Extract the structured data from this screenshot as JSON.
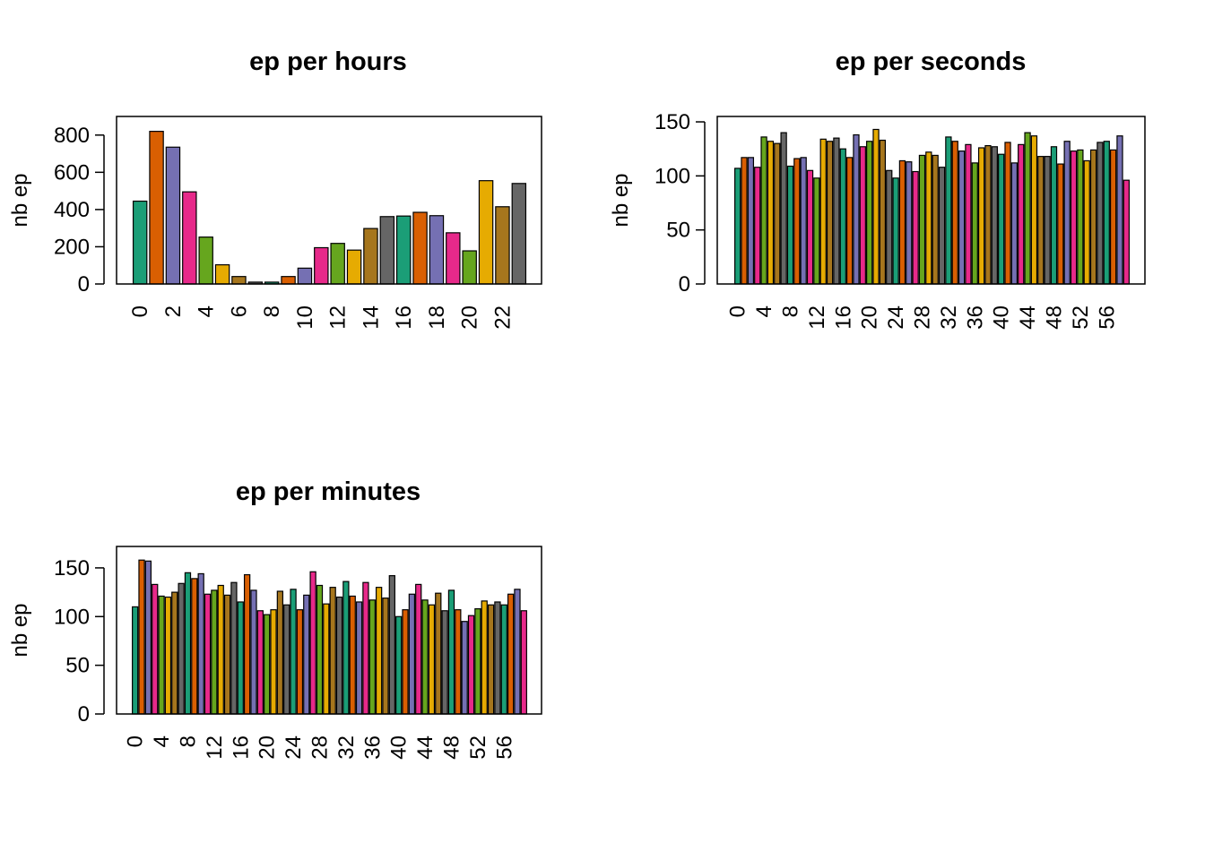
{
  "palette": [
    "#1B9E77",
    "#D95F02",
    "#7570B3",
    "#E7298A",
    "#66A61E",
    "#E6AB02",
    "#A6761D",
    "#666666"
  ],
  "chart_data": [
    {
      "type": "bar",
      "title": "ep per hours",
      "xlabel": "",
      "ylabel": "nb ep",
      "ylim": [
        0,
        900
      ],
      "yticks": [
        0,
        200,
        400,
        600,
        800
      ],
      "categories": [
        "0",
        "1",
        "2",
        "3",
        "4",
        "5",
        "6",
        "7",
        "8",
        "9",
        "10",
        "11",
        "12",
        "13",
        "14",
        "15",
        "16",
        "17",
        "18",
        "19",
        "20",
        "21",
        "22",
        "23"
      ],
      "shown_xtick_labels": [
        "0",
        "2",
        "4",
        "6",
        "8",
        "10",
        "12",
        "14",
        "16",
        "18",
        "20",
        "22"
      ],
      "values": [
        445,
        820,
        735,
        495,
        252,
        103,
        40,
        10,
        10,
        40,
        85,
        195,
        218,
        182,
        298,
        362,
        365,
        385,
        367,
        275,
        178,
        555,
        415,
        540
      ]
    },
    {
      "type": "bar",
      "title": "ep per seconds",
      "xlabel": "",
      "ylabel": "nb ep",
      "ylim": [
        0,
        155
      ],
      "yticks": [
        0,
        50,
        100,
        150
      ],
      "categories": [
        "0",
        "1",
        "2",
        "3",
        "4",
        "5",
        "6",
        "7",
        "8",
        "9",
        "10",
        "11",
        "12",
        "13",
        "14",
        "15",
        "16",
        "17",
        "18",
        "19",
        "20",
        "21",
        "22",
        "23",
        "24",
        "25",
        "26",
        "27",
        "28",
        "29",
        "30",
        "31",
        "32",
        "33",
        "34",
        "35",
        "36",
        "37",
        "38",
        "39",
        "40",
        "41",
        "42",
        "43",
        "44",
        "45",
        "46",
        "47",
        "48",
        "49",
        "50",
        "51",
        "52",
        "53",
        "54",
        "55",
        "56",
        "57",
        "58",
        "59"
      ],
      "shown_xtick_labels": [
        "0",
        "4",
        "8",
        "12",
        "16",
        "20",
        "24",
        "28",
        "32",
        "36",
        "40",
        "44",
        "48",
        "52",
        "56"
      ],
      "values": [
        107,
        117,
        117,
        108,
        136,
        132,
        130,
        140,
        109,
        116,
        117,
        105,
        98,
        134,
        132,
        135,
        125,
        117,
        138,
        127,
        132,
        143,
        133,
        105,
        98,
        114,
        113,
        104,
        119,
        122,
        119,
        108,
        136,
        132,
        123,
        129,
        112,
        126,
        128,
        127,
        120,
        131,
        112,
        129,
        140,
        137,
        118,
        118,
        127,
        111,
        132,
        123,
        124,
        114,
        124,
        131,
        132,
        124,
        137,
        96
      ]
    },
    {
      "type": "bar",
      "title": "ep per minutes",
      "xlabel": "",
      "ylabel": "nb ep",
      "ylim": [
        0,
        172
      ],
      "yticks": [
        0,
        50,
        100,
        150
      ],
      "categories": [
        "0",
        "1",
        "2",
        "3",
        "4",
        "5",
        "6",
        "7",
        "8",
        "9",
        "10",
        "11",
        "12",
        "13",
        "14",
        "15",
        "16",
        "17",
        "18",
        "19",
        "20",
        "21",
        "22",
        "23",
        "24",
        "25",
        "26",
        "27",
        "28",
        "29",
        "30",
        "31",
        "32",
        "33",
        "34",
        "35",
        "36",
        "37",
        "38",
        "39",
        "40",
        "41",
        "42",
        "43",
        "44",
        "45",
        "46",
        "47",
        "48",
        "49",
        "50",
        "51",
        "52",
        "53",
        "54",
        "55",
        "56",
        "57",
        "58",
        "59"
      ],
      "shown_xtick_labels": [
        "0",
        "4",
        "8",
        "12",
        "16",
        "20",
        "24",
        "28",
        "32",
        "36",
        "40",
        "44",
        "48",
        "52",
        "56"
      ],
      "values": [
        110,
        158,
        157,
        133,
        121,
        120,
        125,
        134,
        145,
        139,
        144,
        123,
        127,
        132,
        122,
        135,
        115,
        143,
        127,
        106,
        102,
        107,
        126,
        112,
        128,
        107,
        122,
        146,
        132,
        113,
        130,
        120,
        136,
        121,
        115,
        135,
        117,
        130,
        119,
        142,
        100,
        107,
        123,
        133,
        117,
        112,
        124,
        106,
        127,
        107,
        95,
        101,
        108,
        116,
        112,
        115,
        112,
        123,
        128,
        106
      ]
    }
  ]
}
